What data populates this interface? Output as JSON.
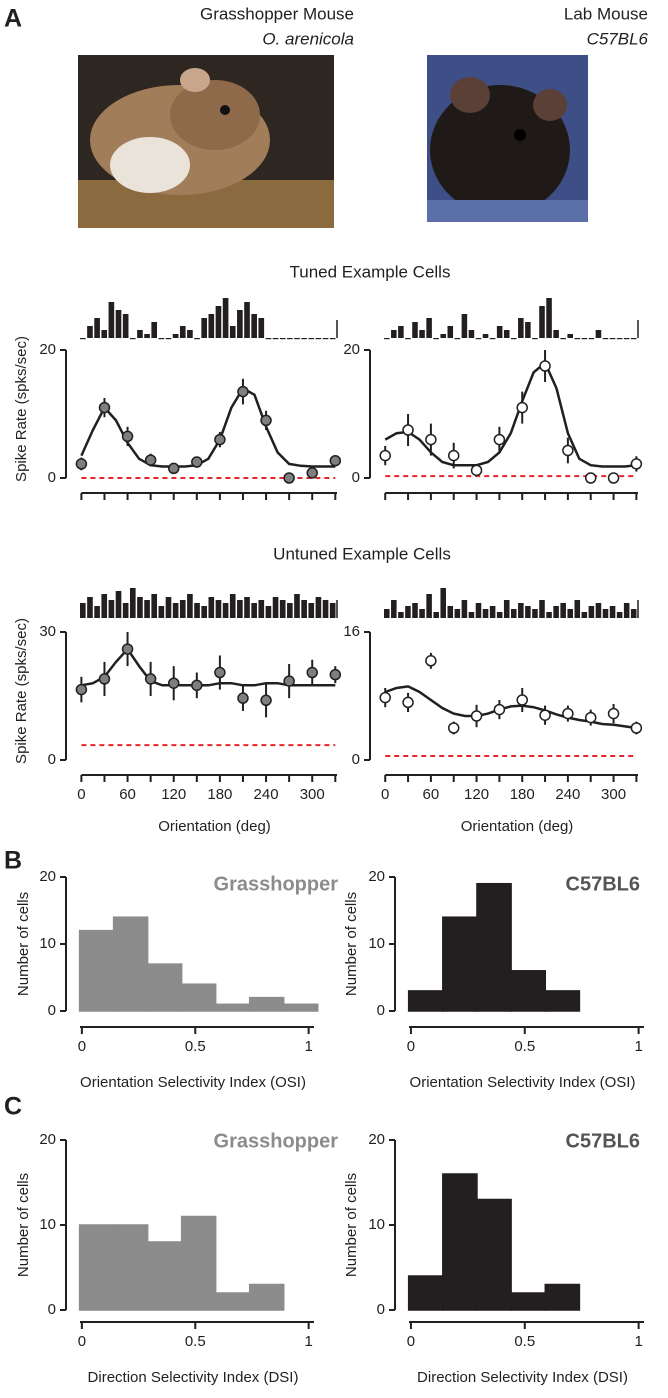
{
  "panel_labels": [
    "A",
    "B",
    "C"
  ],
  "photos": [
    {
      "title": "Grasshopper Mouse",
      "subtitle": "O. arenicola"
    },
    {
      "title": "Lab Mouse",
      "subtitle": "C57BL6"
    }
  ],
  "section_titles": [
    "Tuned Example Cells",
    "Untuned Example Cells"
  ],
  "chart_data": [
    {
      "type": "tuning",
      "ylabel": "Spike Rate (spks/sec)",
      "x": [
        0,
        30,
        60,
        90,
        120,
        150,
        180,
        210,
        240,
        270,
        300,
        330
      ],
      "values": [
        2.2,
        11,
        6.5,
        2.8,
        1.5,
        2.5,
        6,
        13.5,
        9,
        0,
        0.8,
        2.7
      ],
      "errors": [
        1,
        1.5,
        1.5,
        1,
        0.8,
        0.8,
        1.2,
        2,
        1.5,
        0.3,
        0.3,
        0.8
      ],
      "marker_color": "#7f7f7f",
      "fit_x": [
        0,
        15,
        30,
        45,
        60,
        75,
        90,
        105,
        120,
        135,
        150,
        165,
        180,
        195,
        210,
        225,
        240,
        255,
        270,
        285,
        300,
        315,
        330
      ],
      "fit": [
        3.5,
        7.5,
        11,
        9,
        5.5,
        3,
        2,
        1.8,
        1.8,
        1.8,
        2,
        3,
        6,
        11,
        14,
        13,
        8,
        4,
        2.2,
        1.9,
        1.8,
        1.8,
        1.8
      ],
      "baseline": 0,
      "baseline_color": "#e8262a",
      "psth": [
        0,
        3,
        5,
        2,
        9,
        7,
        6,
        0,
        2,
        1,
        4,
        0,
        0,
        1,
        3,
        2,
        0,
        5,
        6,
        8,
        10,
        3,
        7,
        9,
        6,
        5,
        0,
        0,
        0,
        0,
        0,
        0,
        0,
        0,
        0,
        0
      ],
      "ylim": [
        0,
        20
      ],
      "yticks": [
        0,
        20
      ],
      "xlim": [
        -20,
        340
      ],
      "xticks": [
        0,
        60,
        120,
        180,
        240,
        300
      ],
      "xminor": [
        30,
        90,
        150,
        210,
        270,
        330
      ],
      "tick_labels": false
    },
    {
      "type": "tuning",
      "x": [
        0,
        30,
        60,
        90,
        120,
        150,
        180,
        210,
        240,
        270,
        300,
        330
      ],
      "values": [
        3.5,
        7.5,
        6,
        3.5,
        1.2,
        6,
        11,
        17.5,
        4.3,
        0,
        0,
        2.2
      ],
      "errors": [
        1.5,
        2.5,
        2.5,
        2,
        0.8,
        2,
        2.5,
        2.5,
        2,
        0.3,
        0.3,
        1.2
      ],
      "marker_color": "#ffffff",
      "fit_x": [
        0,
        15,
        30,
        45,
        60,
        75,
        90,
        105,
        120,
        135,
        150,
        165,
        180,
        195,
        210,
        225,
        240,
        255,
        270,
        285,
        300,
        315,
        330
      ],
      "fit": [
        6,
        7,
        7.2,
        6,
        4,
        2.5,
        2,
        2,
        2,
        2.5,
        4,
        7,
        12,
        16.5,
        18,
        14,
        7,
        3,
        2,
        1.8,
        1.8,
        1.8,
        2
      ],
      "baseline": 0.3,
      "baseline_color": "#e8262a",
      "psth": [
        0,
        2,
        3,
        0,
        4,
        2,
        5,
        0,
        1,
        3,
        0,
        6,
        2,
        0,
        1,
        0,
        3,
        2,
        0,
        5,
        4,
        0,
        8,
        10,
        2,
        0,
        1,
        0,
        0,
        0,
        2,
        0,
        0,
        0,
        0,
        0
      ],
      "ylim": [
        0,
        20
      ],
      "yticks": [
        0,
        20
      ],
      "xlim": [
        -20,
        340
      ],
      "xticks": [
        0,
        60,
        120,
        180,
        240,
        300
      ],
      "xminor": [
        30,
        90,
        150,
        210,
        270,
        330
      ],
      "tick_labels": false
    },
    {
      "type": "tuning",
      "ylabel": "Spike Rate (spks/sec)",
      "xlabel": "Orientation (deg)",
      "x": [
        0,
        30,
        60,
        90,
        120,
        150,
        180,
        210,
        240,
        270,
        300,
        330
      ],
      "values": [
        16.5,
        19,
        26,
        19,
        18,
        17.5,
        20.5,
        14.5,
        14,
        18.5,
        20.5,
        20
      ],
      "errors": [
        3,
        4,
        4,
        4,
        4,
        3,
        4,
        3,
        4,
        4,
        3,
        2
      ],
      "marker_color": "#7f7f7f",
      "fit_x": [
        0,
        15,
        30,
        45,
        60,
        75,
        90,
        105,
        120,
        135,
        150,
        165,
        180,
        195,
        210,
        225,
        240,
        255,
        270,
        285,
        300,
        315,
        330
      ],
      "fit": [
        17.5,
        18,
        19.5,
        23,
        26,
        22,
        18.5,
        17.5,
        17.5,
        17.5,
        17.5,
        17.5,
        18,
        18,
        17.5,
        17.5,
        18,
        18,
        17.5,
        17.5,
        17.5,
        17.5,
        17.5
      ],
      "baseline": 3.5,
      "baseline_color": "#e8262a",
      "psth": [
        5,
        7,
        4,
        8,
        6,
        9,
        5,
        10,
        7,
        6,
        8,
        4,
        7,
        5,
        6,
        8,
        5,
        4,
        7,
        6,
        5,
        8,
        6,
        7,
        5,
        6,
        4,
        7,
        6,
        5,
        8,
        6,
        5,
        7,
        6,
        5
      ],
      "ylim": [
        0,
        30
      ],
      "yticks": [
        0,
        30
      ],
      "xlim": [
        -20,
        340
      ],
      "xticks": [
        0,
        60,
        120,
        180,
        240,
        300
      ],
      "xminor": [
        30,
        90,
        150,
        210,
        270,
        330
      ],
      "tick_labels": true
    },
    {
      "type": "tuning",
      "xlabel": "Orientation (deg)",
      "x": [
        0,
        30,
        60,
        90,
        120,
        150,
        180,
        210,
        240,
        270,
        300,
        330
      ],
      "values": [
        7.8,
        7.2,
        12.4,
        4,
        5.5,
        6.3,
        7.5,
        5.6,
        5.8,
        5.3,
        5.8,
        4
      ],
      "errors": [
        1.2,
        1.2,
        1,
        0.8,
        1.4,
        1.2,
        1.5,
        1.2,
        1,
        1,
        1.2,
        0.8
      ],
      "marker_color": "#ffffff",
      "fit_x": [
        0,
        15,
        30,
        45,
        60,
        75,
        90,
        105,
        120,
        135,
        150,
        165,
        180,
        195,
        210,
        225,
        240,
        255,
        270,
        285,
        300,
        315,
        330
      ],
      "fit": [
        8.5,
        9,
        9.2,
        8.5,
        7.5,
        6.5,
        5.8,
        5.5,
        5.5,
        5.8,
        6.3,
        6.7,
        6.8,
        6.6,
        6.2,
        5.7,
        5.3,
        5,
        4.8,
        4.5,
        4.4,
        4.2,
        4
      ],
      "baseline": 0.5,
      "baseline_color": "#e8262a",
      "psth": [
        3,
        6,
        2,
        4,
        5,
        3,
        8,
        2,
        10,
        4,
        3,
        6,
        2,
        5,
        3,
        4,
        2,
        6,
        3,
        5,
        4,
        3,
        6,
        2,
        4,
        5,
        3,
        6,
        2,
        4,
        5,
        3,
        4,
        2,
        5,
        3
      ],
      "ylim": [
        0,
        16
      ],
      "yticks": [
        0,
        16
      ],
      "xlim": [
        -20,
        340
      ],
      "xticks": [
        0,
        60,
        120,
        180,
        240,
        300
      ],
      "xminor": [
        30,
        90,
        150,
        210,
        270,
        330
      ],
      "tick_labels": true
    },
    {
      "type": "histogram",
      "label": "Grasshopper",
      "label_color": "#8c8c8c",
      "ylabel": "Number of cells",
      "xlabel": "Orientation Selectivity Index (OSI)",
      "bins": [
        -0.01,
        0.14,
        0.29,
        0.44,
        0.59,
        0.74,
        0.89,
        1.04
      ],
      "counts": [
        12,
        14,
        7,
        4,
        1,
        2,
        1
      ],
      "color": "#8c8c8c",
      "xlim": [
        -0.07,
        1.05
      ],
      "ylim": [
        0,
        20
      ],
      "yticks": [
        0,
        10,
        20
      ],
      "xticks": [
        0,
        0.5,
        1
      ]
    },
    {
      "type": "histogram",
      "label": "C57BL6",
      "label_color": "#555555",
      "ylabel": "Number of cells",
      "xlabel": "Orientation Selectivity Index (OSI)",
      "bins": [
        -0.01,
        0.14,
        0.29,
        0.44,
        0.59,
        0.74,
        0.89,
        1.04
      ],
      "counts": [
        3,
        14,
        19,
        6,
        3,
        0,
        0
      ],
      "color": "#231f20",
      "xlim": [
        -0.07,
        1.05
      ],
      "ylim": [
        0,
        20
      ],
      "yticks": [
        0,
        10,
        20
      ],
      "xticks": [
        0,
        0.5,
        1
      ]
    },
    {
      "type": "histogram",
      "label": "Grasshopper",
      "label_color": "#8c8c8c",
      "ylabel": "Number of cells",
      "xlabel": "Direction Selectivity Index (DSI)",
      "bins": [
        -0.01,
        0.14,
        0.29,
        0.44,
        0.59,
        0.74,
        0.89,
        1.04
      ],
      "counts": [
        10,
        10,
        8,
        11,
        2,
        3,
        0
      ],
      "color": "#8c8c8c",
      "xlim": [
        -0.07,
        1.05
      ],
      "ylim": [
        0,
        20
      ],
      "yticks": [
        0,
        10,
        20
      ],
      "xticks": [
        0,
        0.5,
        1
      ]
    },
    {
      "type": "histogram",
      "label": "C57BL6",
      "label_color": "#555555",
      "ylabel": "Number of cells",
      "xlabel": "Direction Selectivity Index (DSI)",
      "bins": [
        -0.01,
        0.14,
        0.29,
        0.44,
        0.59,
        0.74,
        0.89,
        1.04
      ],
      "counts": [
        4,
        16,
        13,
        2,
        3,
        0,
        0
      ],
      "color": "#231f20",
      "xlim": [
        -0.07,
        1.05
      ],
      "ylim": [
        0,
        20
      ],
      "yticks": [
        0,
        10,
        20
      ],
      "xticks": [
        0,
        0.5,
        1
      ]
    }
  ]
}
